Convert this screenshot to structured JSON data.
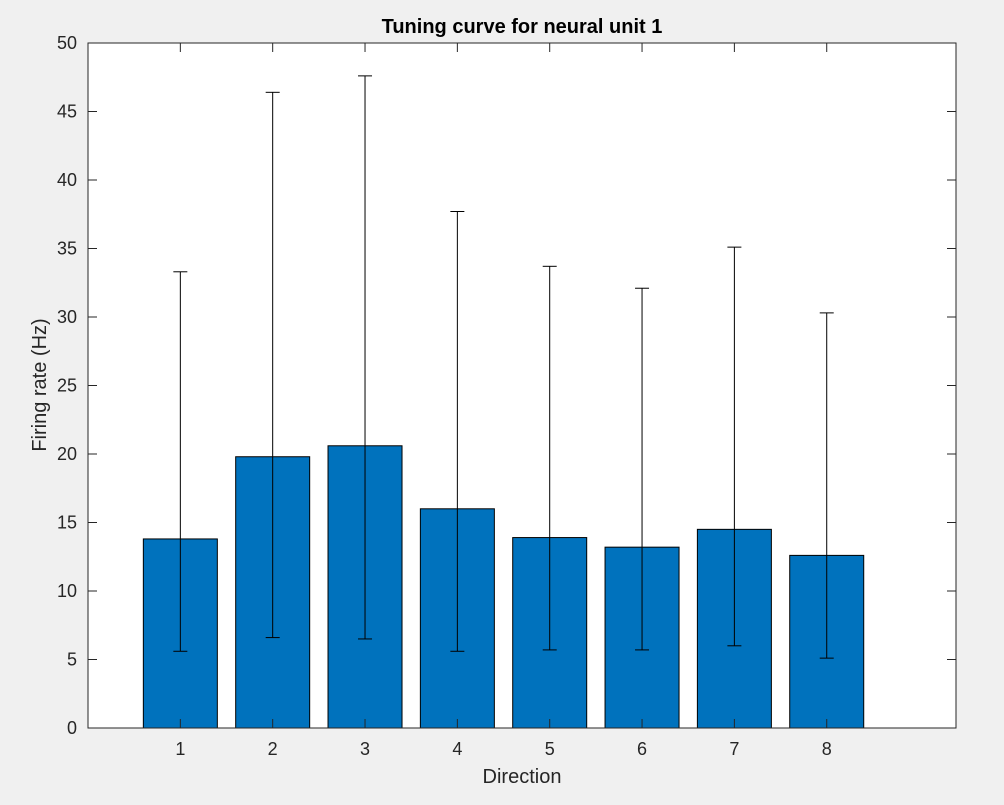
{
  "chart_data": {
    "type": "bar",
    "title": "Tuning curve for neural unit 1",
    "xlabel": "Direction",
    "ylabel": "Firing rate (Hz)",
    "categories": [
      "1",
      "2",
      "3",
      "4",
      "5",
      "6",
      "7",
      "8"
    ],
    "x": [
      1,
      2,
      3,
      4,
      5,
      6,
      7,
      8
    ],
    "values": [
      13.8,
      19.8,
      20.6,
      16.0,
      13.9,
      13.2,
      14.5,
      12.6
    ],
    "error_low": [
      5.6,
      6.6,
      6.5,
      5.6,
      5.7,
      5.7,
      6.0,
      5.1
    ],
    "error_high": [
      33.3,
      46.4,
      47.6,
      37.7,
      33.7,
      32.1,
      35.1,
      30.3
    ],
    "xlim": [
      0,
      9.4
    ],
    "ylim": [
      0,
      50
    ],
    "yticks": [
      0,
      5,
      10,
      15,
      20,
      25,
      30,
      35,
      40,
      45,
      50
    ],
    "grid": false,
    "legend": "none",
    "colors": {
      "bar_fill": "#0072BD",
      "bar_edge": "#000000",
      "error_bar": "#000000",
      "axes_background": "#ffffff",
      "figure_background": "#f0f0f0",
      "axis_color": "#262626"
    }
  }
}
